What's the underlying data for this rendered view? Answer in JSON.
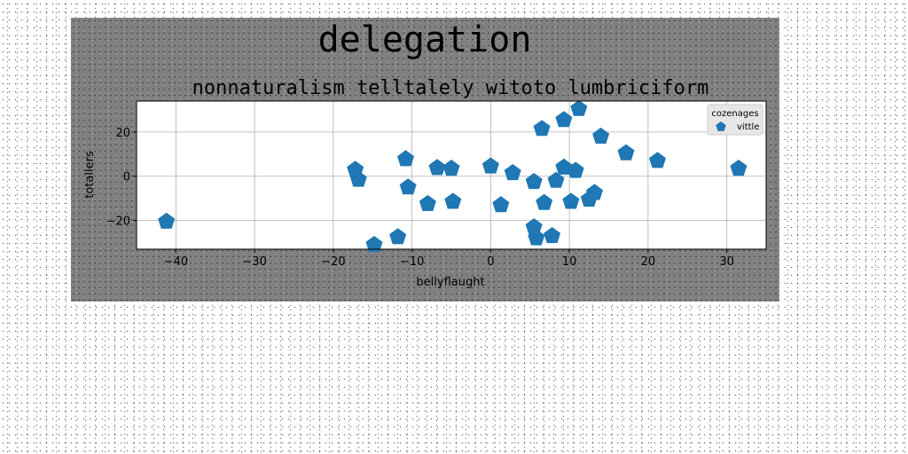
{
  "chart_data": {
    "type": "scatter",
    "suptitle": "delegation",
    "title": "nonnaturalism telltalely witoto lumbriciform",
    "xlabel": "bellyflaught",
    "ylabel": "totallers",
    "xlim": [
      -45,
      35
    ],
    "ylim": [
      -33,
      34
    ],
    "xticks": [
      -40,
      -30,
      -20,
      -10,
      0,
      10,
      20,
      30
    ],
    "yticks": [
      -20,
      0,
      20
    ],
    "xtick_labels": [
      "−40",
      "−30",
      "−20",
      "−10",
      "0",
      "10",
      "20",
      "30"
    ],
    "ytick_labels": [
      "−20",
      "0",
      "20"
    ],
    "grid": true,
    "marker": "pentagon",
    "color": "#1f77b4",
    "legend": {
      "title": "cozenages",
      "placement": "upper right"
    },
    "series": [
      {
        "name": "vittle",
        "points": [
          [
            -41.2,
            -20.5
          ],
          [
            -17.2,
            3.0
          ],
          [
            -16.8,
            -1.5
          ],
          [
            -14.8,
            -31.0
          ],
          [
            -11.8,
            -27.5
          ],
          [
            -10.8,
            7.8
          ],
          [
            -10.5,
            -5.0
          ],
          [
            -8.0,
            -12.5
          ],
          [
            -6.8,
            3.8
          ],
          [
            -5.0,
            3.5
          ],
          [
            -4.8,
            -11.5
          ],
          [
            0.0,
            4.5
          ],
          [
            1.3,
            -13.0
          ],
          [
            2.8,
            1.5
          ],
          [
            5.5,
            -2.5
          ],
          [
            5.5,
            -23.0
          ],
          [
            5.8,
            -28.0
          ],
          [
            6.5,
            21.5
          ],
          [
            6.8,
            -12.0
          ],
          [
            7.8,
            -27.0
          ],
          [
            8.3,
            -2.0
          ],
          [
            9.3,
            25.5
          ],
          [
            9.3,
            4.0
          ],
          [
            10.2,
            -11.5
          ],
          [
            10.8,
            2.5
          ],
          [
            11.2,
            30.5
          ],
          [
            12.5,
            -10.5
          ],
          [
            13.2,
            -7.5
          ],
          [
            14.0,
            18.0
          ],
          [
            17.2,
            10.5
          ],
          [
            21.2,
            7.0
          ],
          [
            31.5,
            3.5
          ]
        ]
      }
    ]
  }
}
